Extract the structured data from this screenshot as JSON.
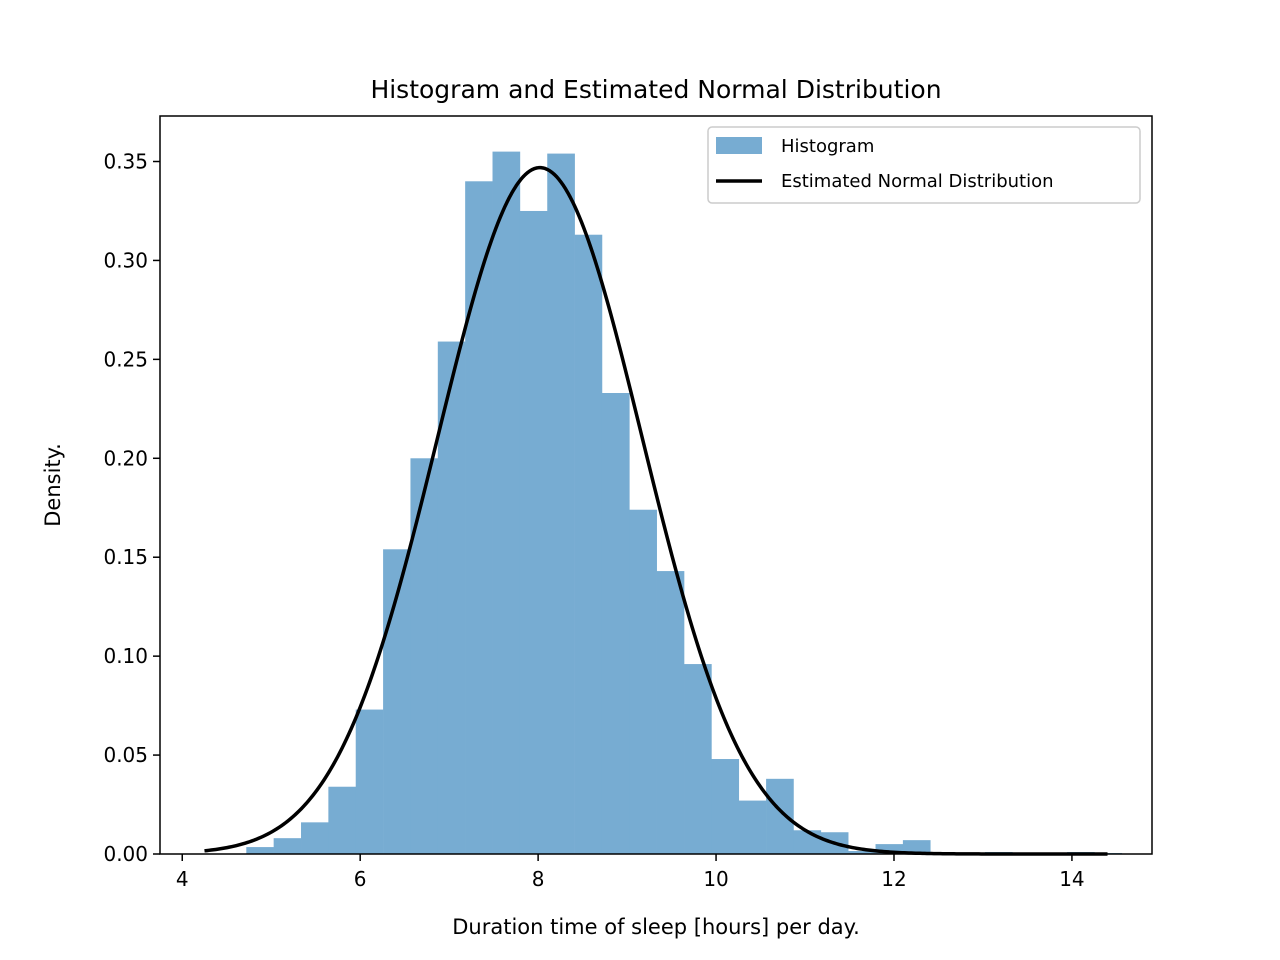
{
  "chart_data": {
    "type": "bar",
    "title": "Histogram and Estimated Normal Distribution",
    "xlabel": "Duration time of sleep [hours] per day.",
    "ylabel": "Density.",
    "xlim": [
      3.75,
      14.9
    ],
    "ylim": [
      0,
      0.373
    ],
    "xticks": [
      4,
      6,
      8,
      10,
      12,
      14
    ],
    "xtick_labels": [
      "4",
      "6",
      "8",
      "10",
      "12",
      "14"
    ],
    "yticks": [
      0,
      0.05,
      0.1,
      0.15,
      0.2,
      0.25,
      0.3,
      0.35
    ],
    "ytick_labels": [
      "0.00",
      "0.05",
      "0.10",
      "0.15",
      "0.20",
      "0.25",
      "0.30",
      "0.35"
    ],
    "grid": false,
    "legend_position": "top-right",
    "histogram": {
      "name": "Histogram",
      "color": "#77acd2",
      "bin_start": 4.72,
      "bin_width": 0.3075,
      "values": [
        0.0035,
        0.008,
        0.016,
        0.034,
        0.073,
        0.154,
        0.2,
        0.259,
        0.34,
        0.355,
        0.325,
        0.354,
        0.313,
        0.233,
        0.174,
        0.143,
        0.096,
        0.048,
        0.027,
        0.038,
        0.012,
        0.011,
        0.0015,
        0.005,
        0.007,
        0.0005,
        0.0005,
        0.001,
        0.0005,
        0.0005,
        0.001,
        0.0005
      ]
    },
    "normal_curve": {
      "name": "Estimated Normal Distribution",
      "color": "#000000",
      "mean": 8.02,
      "std": 1.15,
      "x_range": [
        4.25,
        14.4
      ]
    }
  }
}
